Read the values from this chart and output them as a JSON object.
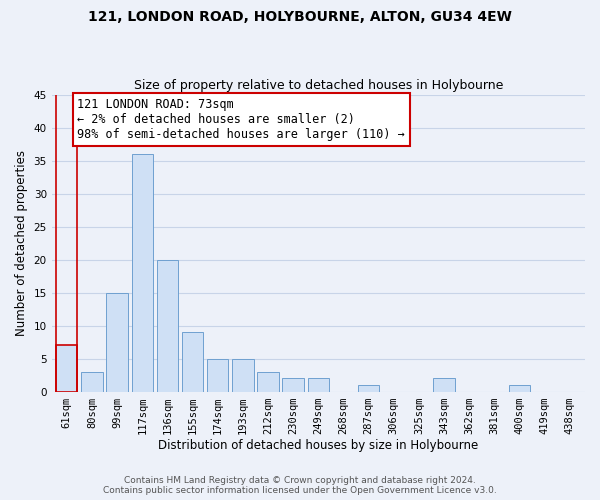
{
  "title": "121, LONDON ROAD, HOLYBOURNE, ALTON, GU34 4EW",
  "subtitle": "Size of property relative to detached houses in Holybourne",
  "xlabel": "Distribution of detached houses by size in Holybourne",
  "ylabel": "Number of detached properties",
  "categories": [
    "61sqm",
    "80sqm",
    "99sqm",
    "117sqm",
    "136sqm",
    "155sqm",
    "174sqm",
    "193sqm",
    "212sqm",
    "230sqm",
    "249sqm",
    "268sqm",
    "287sqm",
    "306sqm",
    "325sqm",
    "343sqm",
    "362sqm",
    "381sqm",
    "400sqm",
    "419sqm",
    "438sqm"
  ],
  "values": [
    7,
    3,
    15,
    36,
    20,
    9,
    5,
    5,
    3,
    2,
    2,
    0,
    1,
    0,
    0,
    2,
    0,
    0,
    1,
    0,
    0
  ],
  "bar_color": "#cfe0f5",
  "bar_edge_color": "#6fa0d0",
  "highlight_bar_index": 0,
  "highlight_bar_edge_color": "#cc0000",
  "annotation_box_text": "121 LONDON ROAD: 73sqm\n← 2% of detached houses are smaller (2)\n98% of semi-detached houses are larger (110) →",
  "annotation_box_color": "white",
  "annotation_box_edge_color": "#cc0000",
  "ylim": [
    0,
    45
  ],
  "yticks": [
    0,
    5,
    10,
    15,
    20,
    25,
    30,
    35,
    40,
    45
  ],
  "grid_color": "#c8d4e8",
  "background_color": "#edf1f9",
  "footer_line1": "Contains HM Land Registry data © Crown copyright and database right 2024.",
  "footer_line2": "Contains public sector information licensed under the Open Government Licence v3.0.",
  "title_fontsize": 10,
  "subtitle_fontsize": 9,
  "xlabel_fontsize": 8.5,
  "ylabel_fontsize": 8.5,
  "tick_fontsize": 7.5,
  "annotation_fontsize": 8.5,
  "footer_fontsize": 6.5
}
